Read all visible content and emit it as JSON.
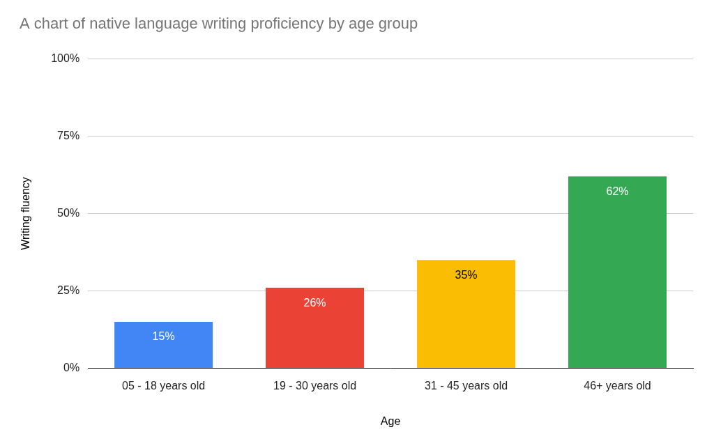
{
  "chart_data": {
    "type": "bar",
    "title": "A chart of native language writing proficiency by age group",
    "x_label": "Age",
    "y_label": "Writing fluency",
    "categories": [
      "05 - 18 years old",
      "19 - 30 years old",
      "31 - 45 years old",
      "46+ years old"
    ],
    "values": [
      15,
      26,
      35,
      62
    ],
    "value_labels": [
      "15%",
      "26%",
      "35%",
      "62%"
    ],
    "colors": [
      "#4285f4",
      "#ea4335",
      "#fbbc04",
      "#34a853"
    ],
    "ylim": [
      0,
      100
    ],
    "yticks": [
      {
        "value": 0,
        "label": "0%"
      },
      {
        "value": 25,
        "label": "25%"
      },
      {
        "value": 50,
        "label": "50%"
      },
      {
        "value": 75,
        "label": "75%"
      },
      {
        "value": 100,
        "label": "100%"
      }
    ],
    "grid": true,
    "data_labels": true
  }
}
